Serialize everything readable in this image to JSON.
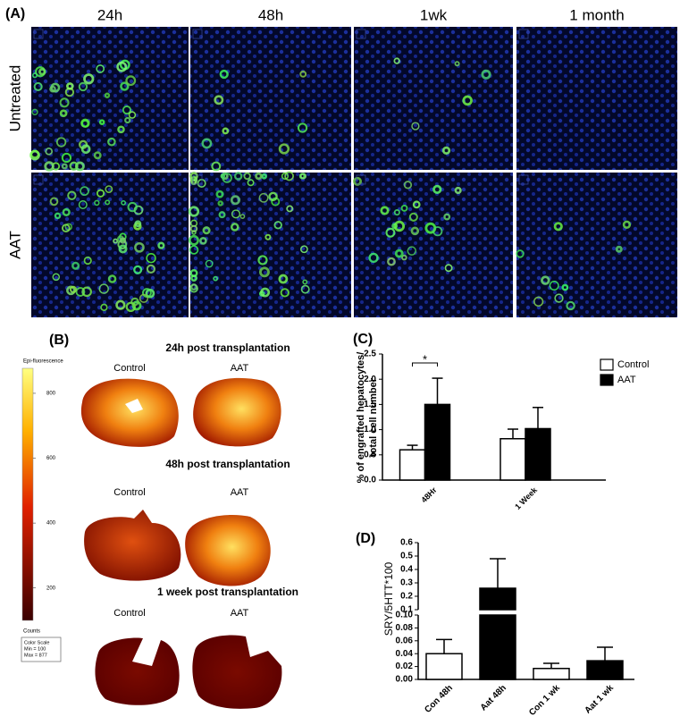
{
  "panel_a": {
    "label": "(A)",
    "columns": [
      "24h",
      "48h",
      "1wk",
      "1 month"
    ],
    "rows": [
      "Untreated",
      "AAT"
    ]
  },
  "panel_b": {
    "label": "(B)",
    "colorbar": {
      "title": "Epi-fluorescence",
      "ticks": [
        800,
        600,
        400,
        200
      ],
      "clim": [
        100,
        877
      ],
      "unit": "Counts",
      "scale_box": [
        "Color Scale",
        "Min = 100",
        "Max = 877"
      ]
    },
    "sections": [
      {
        "title": "24h post transplantation",
        "groups": [
          "Control",
          "AAT"
        ]
      },
      {
        "title": "48h post transplantation",
        "groups": [
          "Control",
          "AAT"
        ]
      },
      {
        "title": "1 week post transplantation",
        "groups": [
          "Control",
          "AAT"
        ]
      }
    ]
  },
  "chart_data": [
    {
      "panel_label": "(C)",
      "type": "bar",
      "ylabel": [
        "% of engrafted hepatocytes/",
        "total cell number"
      ],
      "categories": [
        "48Hr",
        "1 Week"
      ],
      "series": [
        {
          "name": "Control",
          "color": "#ffffff",
          "values": [
            0.6,
            0.82
          ],
          "errors": [
            0.09,
            0.19
          ]
        },
        {
          "name": "AAT",
          "color": "#000000",
          "values": [
            1.5,
            1.02
          ],
          "errors": [
            0.52,
            0.42
          ]
        }
      ],
      "ylim": [
        0,
        2.5
      ],
      "yticks": [
        {
          "value": 0,
          "label": "0.0"
        },
        {
          "value": 0.5,
          "label": "0.5"
        },
        {
          "value": 1,
          "label": "1.0"
        },
        {
          "value": 1.5,
          "label": "1.5"
        },
        {
          "value": 2,
          "label": "2.0"
        },
        {
          "value": 2.5,
          "label": "2.5"
        }
      ],
      "annotations": [
        {
          "text": "*"
        }
      ],
      "legend": "top-right"
    },
    {
      "panel_label": "(D)",
      "type": "bar",
      "ylabel": "SRY/5HTT*100",
      "categories": [
        "Con 48h",
        "Aat 48h",
        "Con 1 wk",
        "Aat 1 wk"
      ],
      "values": [
        0.04,
        0.26,
        0.017,
        0.029
      ],
      "errors": [
        0.022,
        0.22,
        0.008,
        0.021
      ],
      "colors": [
        "#ffffff",
        "#000000",
        "#ffffff",
        "#000000"
      ],
      "ylim": [
        [
          0,
          0.1
        ],
        [
          0.1,
          0.6
        ]
      ],
      "yticks": [
        [
          {
            "value": 0,
            "label": "0.00"
          },
          {
            "value": 0.02,
            "label": "0.02"
          },
          {
            "value": 0.04,
            "label": "0.04"
          },
          {
            "value": 0.06,
            "label": "0.06"
          },
          {
            "value": 0.08,
            "label": "0.08"
          },
          {
            "value": 0.1,
            "label": "0.10"
          }
        ],
        [
          0.1,
          0.2,
          0.3,
          0.4,
          0.5,
          0.6
        ]
      ]
    }
  ]
}
